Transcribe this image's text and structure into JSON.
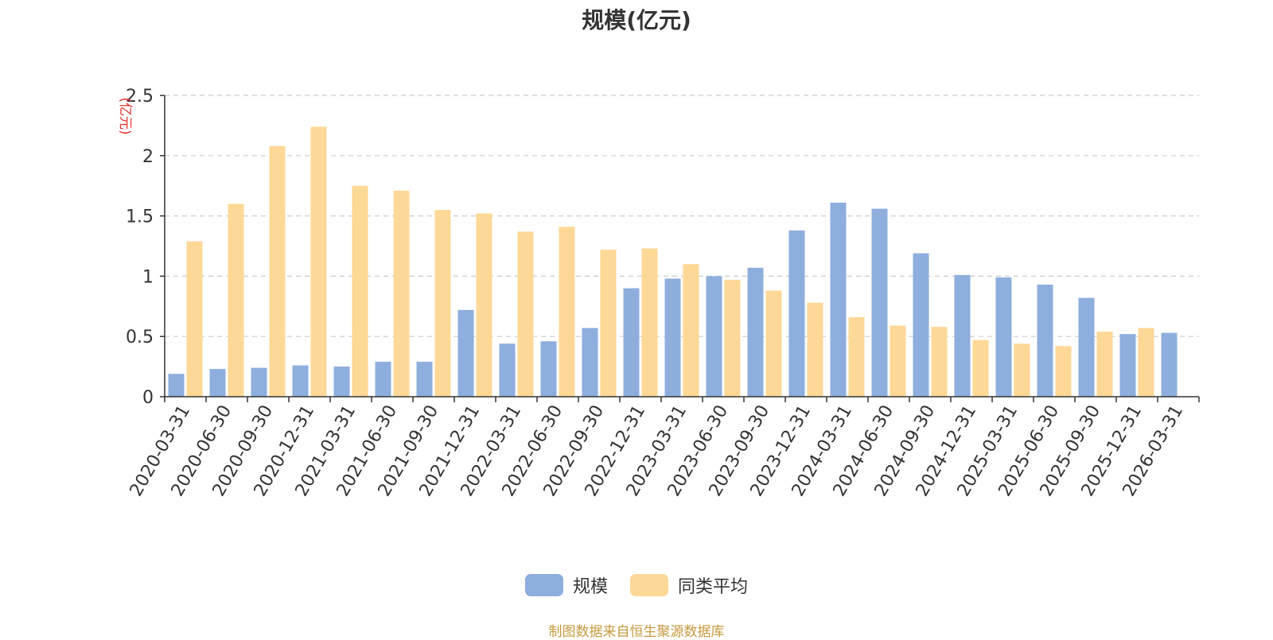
{
  "colors": {
    "series_scale": "#8eaedd",
    "series_avg": "#fed897",
    "ylabel": "#e8332d",
    "source": "#c79a3e",
    "grid": "#cccccc",
    "axis": "#333333"
  },
  "chart_data": {
    "type": "bar",
    "title": "规模(亿元)",
    "ylabel": "(亿元)",
    "xlabel": "",
    "ylim": [
      0,
      2.5
    ],
    "yticks": [
      "0",
      "0.5",
      "1",
      "1.5",
      "2",
      "2.5"
    ],
    "ytick_values": [
      0,
      0.5,
      1,
      1.5,
      2,
      2.5
    ],
    "grid": "dashed horizontal",
    "legend_position": "bottom-center",
    "categories": [
      "2020-03-31",
      "2020-06-30",
      "2020-09-30",
      "2020-12-31",
      "2021-03-31",
      "2021-06-30",
      "2021-09-30",
      "2021-12-31",
      "2022-03-31",
      "2022-06-30",
      "2022-09-30",
      "2022-12-31",
      "2023-03-31",
      "2023-06-30",
      "2023-09-30",
      "2023-12-31",
      "2024-03-31",
      "2024-06-30",
      "2024-09-30",
      "2024-12-31",
      "2025-03-31",
      "2025-06-30",
      "2025-09-30",
      "2025-12-31",
      "2026-03-31"
    ],
    "series": [
      {
        "name": "规模",
        "values": [
          0.19,
          0.23,
          0.24,
          0.26,
          0.25,
          0.29,
          0.29,
          0.72,
          0.44,
          0.46,
          0.57,
          0.9,
          0.98,
          1.0,
          1.07,
          1.38,
          1.61,
          1.56,
          1.19,
          1.01,
          0.99,
          0.93,
          0.82,
          0.52,
          0.53
        ]
      },
      {
        "name": "同类平均",
        "values": [
          1.29,
          1.6,
          2.08,
          2.24,
          1.75,
          1.71,
          1.55,
          1.52,
          1.37,
          1.41,
          1.22,
          1.23,
          1.1,
          0.97,
          0.88,
          0.78,
          0.66,
          0.59,
          0.58,
          0.47,
          0.44,
          0.42,
          0.54,
          0.57,
          null
        ]
      }
    ]
  },
  "source_text": "制图数据来自恒生聚源数据库"
}
